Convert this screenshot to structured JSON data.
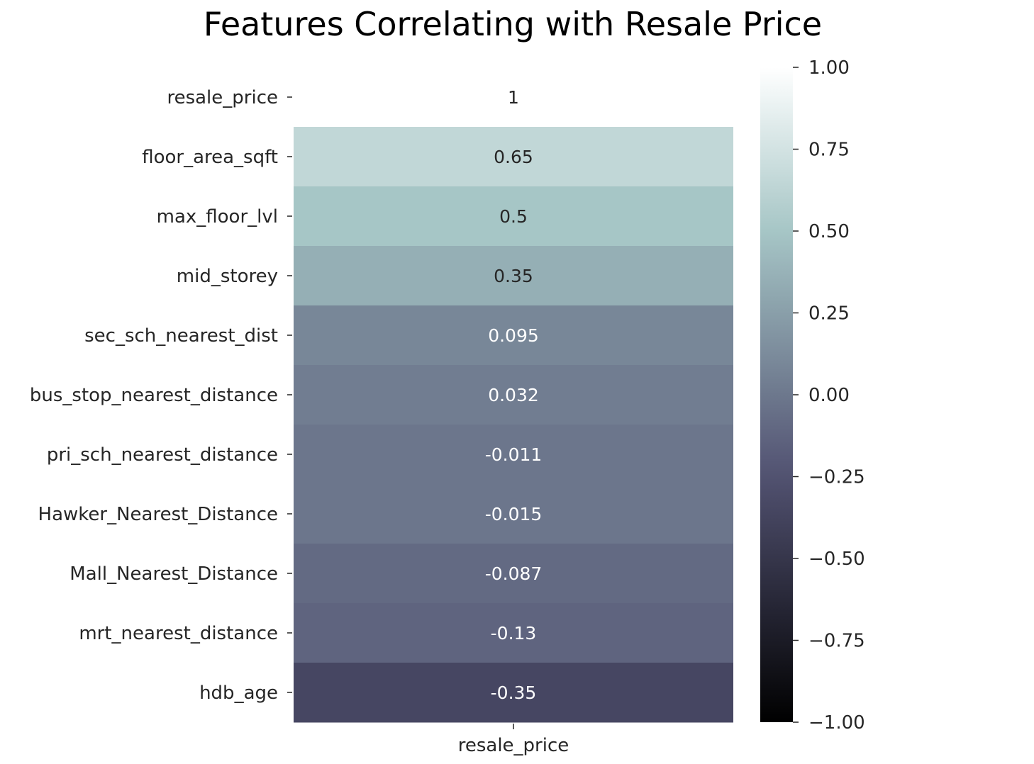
{
  "chart_data": {
    "type": "heatmap",
    "title": "Features Correlating with Resale Price",
    "columns": [
      "resale_price"
    ],
    "rows": [
      "resale_price",
      "floor_area_sqft",
      "max_floor_lvl",
      "mid_storey",
      "sec_sch_nearest_dist",
      "bus_stop_nearest_distance",
      "pri_sch_nearest_distance",
      "Hawker_Nearest_Distance",
      "Mall_Nearest_Distance",
      "mrt_nearest_distance",
      "hdb_age"
    ],
    "values": [
      1,
      0.65,
      0.5,
      0.35,
      0.095,
      0.032,
      -0.011,
      -0.015,
      -0.087,
      -0.13,
      -0.35
    ],
    "annotations": [
      "1",
      "0.65",
      "0.5",
      "0.35",
      "0.095",
      "0.032",
      "-0.011",
      "-0.015",
      "-0.087",
      "-0.13",
      "-0.35"
    ],
    "colormap": "bone",
    "vmin": -1.0,
    "vmax": 1.0,
    "colorbar_ticks": [
      1.0,
      0.75,
      0.5,
      0.25,
      0.0,
      -0.25,
      -0.5,
      -0.75,
      -1.0
    ],
    "colorbar_tick_labels": [
      "1.00",
      "0.75",
      "0.50",
      "0.25",
      "0.00",
      "−0.25",
      "−0.50",
      "−0.75",
      "−1.00"
    ],
    "colorbar_position": "right",
    "grid": false
  }
}
